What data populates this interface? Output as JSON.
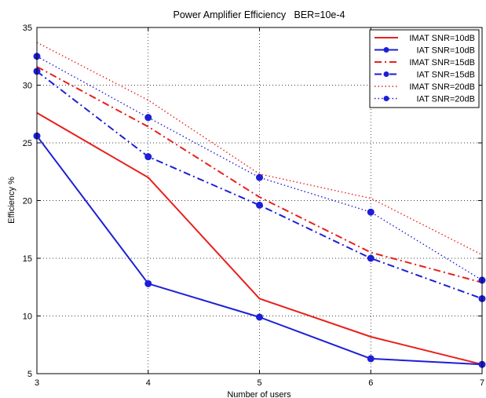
{
  "chart_data": {
    "type": "line",
    "title": "Power Amplifier Efficiency   BER=10e-4",
    "xlabel": "Number of users",
    "ylabel": "Efficiency %",
    "xlim": [
      3,
      7
    ],
    "ylim": [
      5,
      35
    ],
    "x_ticks": [
      "3",
      "4",
      "5",
      "6",
      "7"
    ],
    "y_ticks": [
      "5",
      "10",
      "15",
      "20",
      "25",
      "30",
      "35"
    ],
    "grid": true,
    "legend_position": "top-right",
    "x": [
      3,
      4,
      5,
      6,
      7
    ],
    "series": [
      {
        "name": "IMAT SNR=10dB",
        "values": [
          27.6,
          22.0,
          11.5,
          8.2,
          5.8
        ],
        "color": "#e8201c",
        "style": "solid",
        "marker": false
      },
      {
        "name": "IAT SNR=10dB",
        "values": [
          25.6,
          12.8,
          9.9,
          6.3,
          5.8
        ],
        "color": "#1d1fd6",
        "style": "solid",
        "marker": true
      },
      {
        "name": "IMAT SNR=15dB",
        "values": [
          31.6,
          26.4,
          20.3,
          15.5,
          12.9
        ],
        "color": "#e8201c",
        "style": "dashdot",
        "marker": false
      },
      {
        "name": "IAT SNR=15dB",
        "values": [
          31.2,
          23.8,
          19.6,
          15.0,
          11.5
        ],
        "color": "#1d1fd6",
        "style": "dashdot",
        "marker": true
      },
      {
        "name": "IMAT SNR=20dB",
        "values": [
          33.7,
          28.7,
          22.3,
          20.2,
          15.3
        ],
        "color": "#e8201c",
        "style": "dotted",
        "marker": false
      },
      {
        "name": "IAT SNR=20dB",
        "values": [
          32.5,
          27.2,
          22.0,
          19.0,
          13.1
        ],
        "color": "#1d1fd6",
        "style": "dotted",
        "marker": true
      }
    ]
  }
}
